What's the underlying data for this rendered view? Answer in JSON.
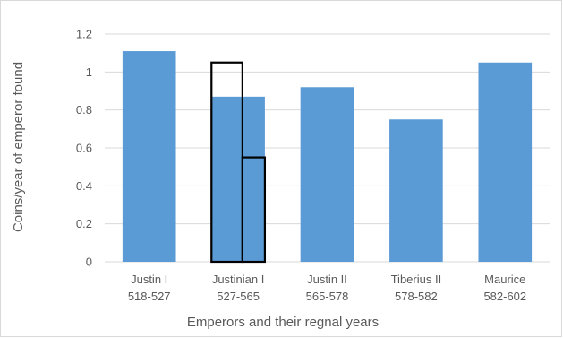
{
  "chart_data": {
    "type": "bar",
    "title": "",
    "xlabel": "Emperors and their regnal years",
    "ylabel": "Coins/year of emperor found",
    "categories": [
      {
        "name": "Justin I",
        "years": "518-527"
      },
      {
        "name": "Justinian I",
        "years": "527-565"
      },
      {
        "name": "Justin II",
        "years": "565-578"
      },
      {
        "name": "Tiberius II",
        "years": "578-582"
      },
      {
        "name": "Maurice",
        "years": "582-602"
      }
    ],
    "values": [
      1.11,
      0.87,
      0.92,
      0.75,
      1.05
    ],
    "ylim": [
      0,
      1.2
    ],
    "yticks": [
      "0",
      "0.2",
      "0.4",
      "0.6",
      "0.8",
      "1",
      "1.2"
    ],
    "grid": true,
    "bar_color": "#5b9bd5",
    "overlay": {
      "category": "Justinian I",
      "outline_color": "#000000",
      "boxes": [
        {
          "value": 1.05,
          "span": "left"
        },
        {
          "value": 0.55,
          "span": "right"
        }
      ]
    }
  }
}
